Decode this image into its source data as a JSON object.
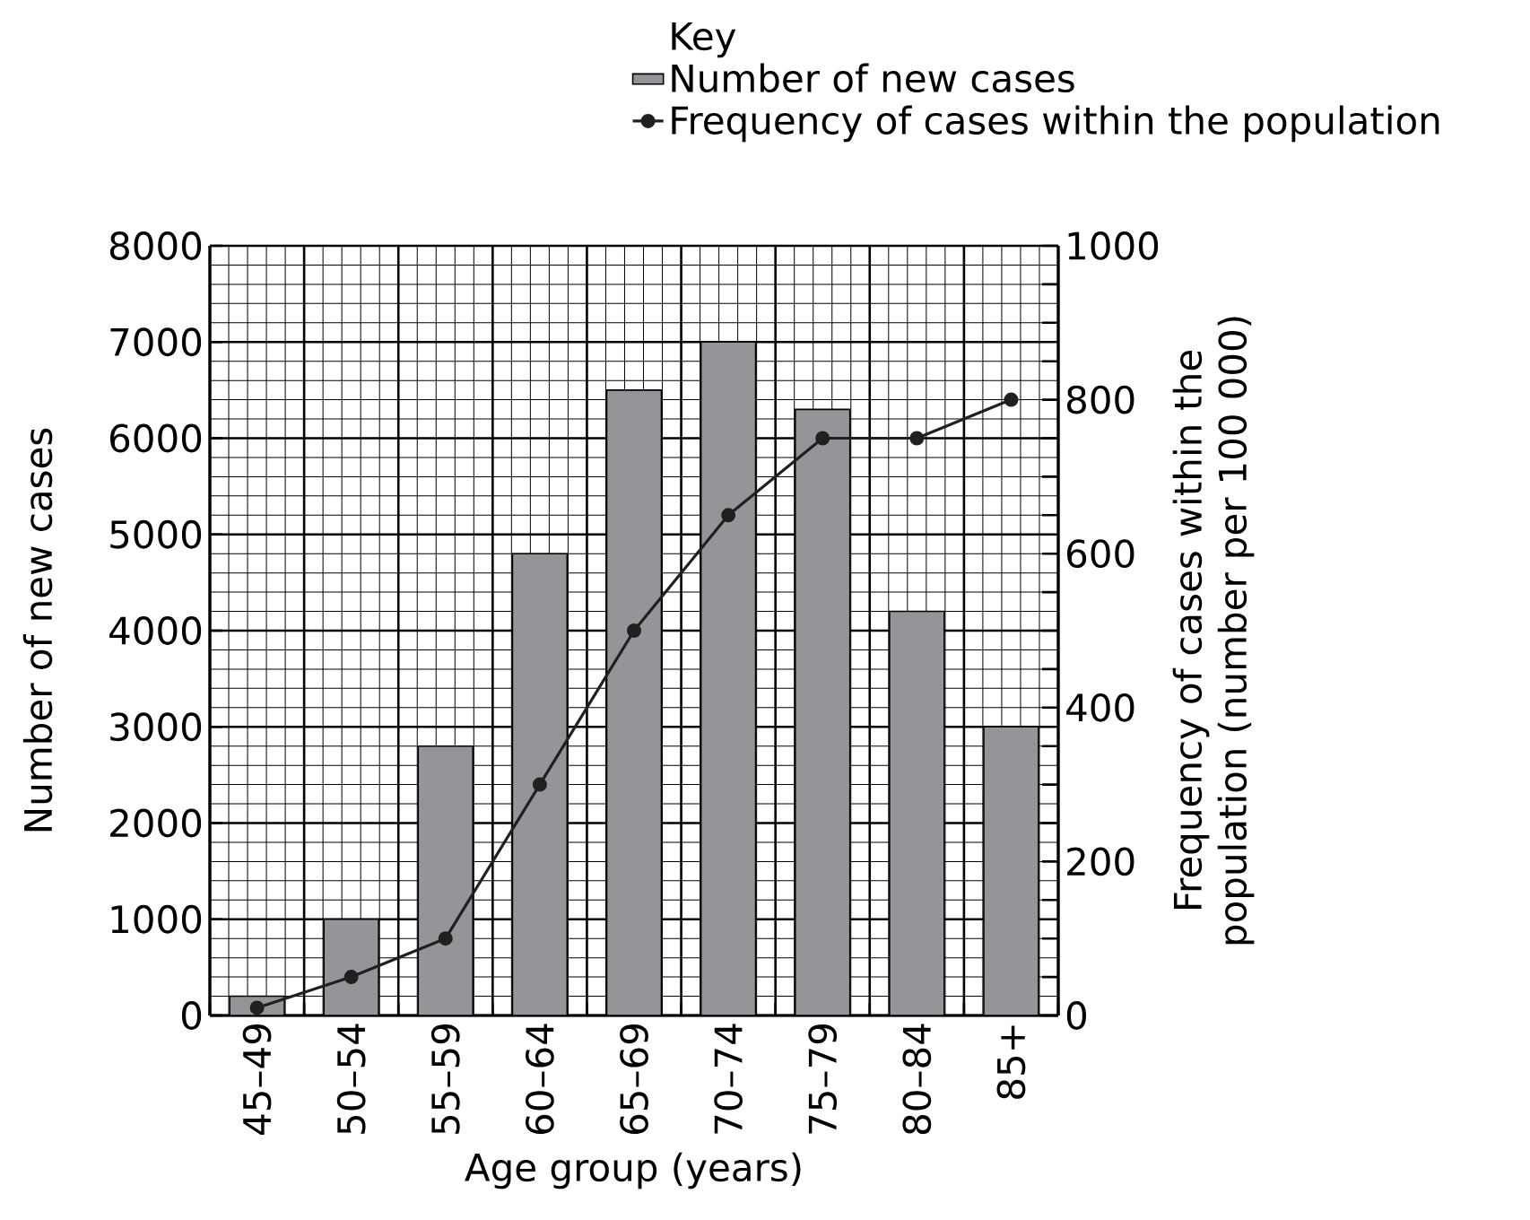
{
  "chart_data": {
    "type": "bar",
    "categories": [
      "45–49",
      "50–54",
      "55–59",
      "60–64",
      "65–69",
      "70–74",
      "75–79",
      "80–84",
      "85+"
    ],
    "series": [
      {
        "name": "Number of new cases",
        "color": "#939598",
        "values": [
          200,
          1000,
          2800,
          4800,
          6500,
          7000,
          6300,
          4200,
          3000
        ]
      },
      {
        "name": "Frequency of cases within the population",
        "type": "line",
        "axis": "y2",
        "color": "#231f20",
        "marker": "circle",
        "line_style": "solid",
        "values": [
          10,
          50,
          100,
          300,
          500,
          650,
          750,
          750,
          800
        ]
      }
    ],
    "xlabel": "Age group (years)",
    "ylabel": "Number of new cases",
    "y2label": "Frequency of cases within the population (number per 100 000)",
    "legend_title": "Key",
    "legend": "top right",
    "grid": true,
    "ylim": [
      0,
      8000
    ],
    "yticks": [
      0,
      1000,
      2000,
      3000,
      4000,
      5000,
      6000,
      7000,
      8000
    ],
    "y2lim": [
      0,
      1000
    ],
    "y2ticks": [
      0,
      200,
      400,
      600,
      800,
      1000
    ]
  }
}
